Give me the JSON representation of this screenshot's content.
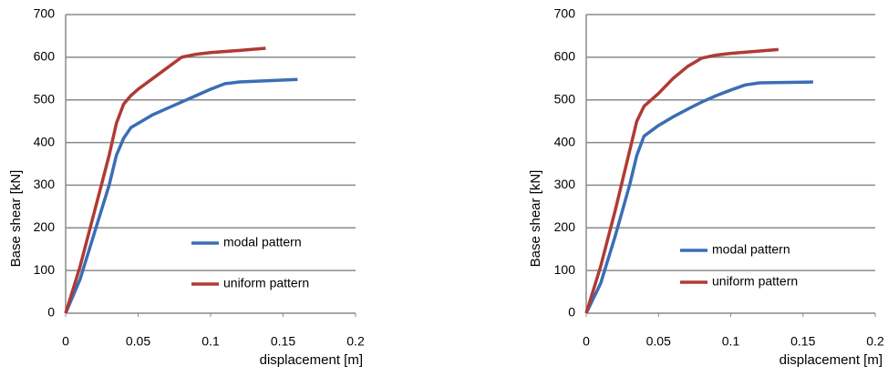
{
  "chart_data": [
    {
      "type": "line",
      "y_label": "Base shear [kN]",
      "x_label": "displacement [m]",
      "xlim": [
        0,
        0.2
      ],
      "xticks": [
        0,
        0.05,
        0.1,
        0.15,
        0.2
      ],
      "ylim": [
        0,
        700
      ],
      "yticks": [
        0,
        100,
        200,
        300,
        400,
        500,
        600,
        700
      ],
      "grid": true,
      "legend": "lower right",
      "series": [
        {
          "name": "modal pattern",
          "color": "#3a6eb5",
          "x": [
            0,
            0.01,
            0.02,
            0.03,
            0.035,
            0.04,
            0.045,
            0.05,
            0.06,
            0.07,
            0.08,
            0.09,
            0.1,
            0.11,
            0.12,
            0.14,
            0.16
          ],
          "values": [
            0,
            80,
            190,
            300,
            370,
            410,
            435,
            445,
            465,
            480,
            495,
            510,
            525,
            538,
            542,
            545,
            548
          ]
        },
        {
          "name": "uniform pattern",
          "color": "#b03a35",
          "x": [
            0,
            0.01,
            0.02,
            0.03,
            0.035,
            0.04,
            0.045,
            0.05,
            0.06,
            0.07,
            0.08,
            0.09,
            0.1,
            0.12,
            0.138
          ],
          "values": [
            0,
            110,
            240,
            370,
            445,
            490,
            510,
            525,
            550,
            575,
            600,
            607,
            611,
            616,
            621
          ]
        }
      ]
    },
    {
      "type": "line",
      "y_label": "Base shear [kN]",
      "x_label": "displacement [m]",
      "xlim": [
        0,
        0.2
      ],
      "xticks": [
        0,
        0.05,
        0.1,
        0.15,
        0.2
      ],
      "ylim": [
        0,
        700
      ],
      "yticks": [
        0,
        100,
        200,
        300,
        400,
        500,
        600,
        700
      ],
      "grid": true,
      "legend": "lower right",
      "series": [
        {
          "name": "modal pattern",
          "color": "#3a6eb5",
          "x": [
            0,
            0.01,
            0.02,
            0.03,
            0.035,
            0.04,
            0.05,
            0.06,
            0.07,
            0.08,
            0.09,
            0.1,
            0.11,
            0.12,
            0.157
          ],
          "values": [
            0,
            70,
            180,
            300,
            370,
            415,
            440,
            460,
            478,
            495,
            510,
            523,
            535,
            540,
            542
          ]
        },
        {
          "name": "uniform pattern",
          "color": "#b03a35",
          "x": [
            0,
            0.01,
            0.02,
            0.03,
            0.035,
            0.04,
            0.05,
            0.06,
            0.07,
            0.08,
            0.09,
            0.1,
            0.133
          ],
          "values": [
            0,
            110,
            240,
            380,
            450,
            485,
            515,
            550,
            578,
            598,
            605,
            609,
            618
          ]
        }
      ]
    }
  ]
}
